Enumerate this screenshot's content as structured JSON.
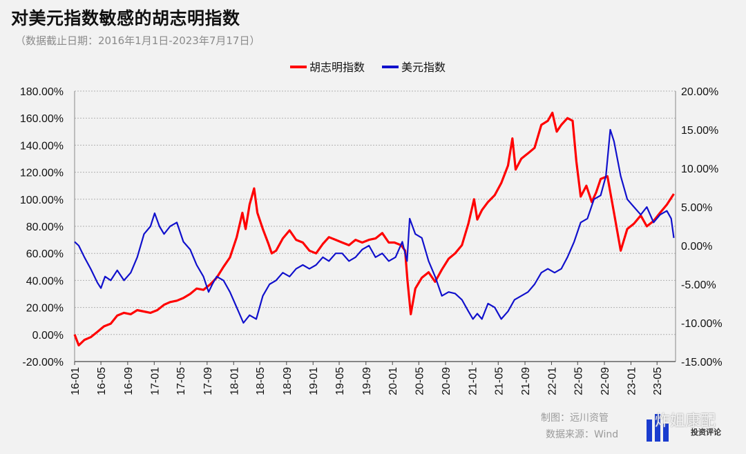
{
  "title": "对美元指数敏感的胡志明指数",
  "subtitle": "（数据截止日期：2016年1月1日-2023年7月17日）",
  "footer": {
    "maker": "制图：远川资管",
    "source": "数据来源：Wind"
  },
  "watermark": {
    "text": "炸姐康配",
    "sub": "投资评论"
  },
  "colors": {
    "vn_index": "#ff0000",
    "usd_index": "#1010cc",
    "grid": "#b0b0b0",
    "background": "#f2f2f2"
  },
  "chart_data": {
    "type": "line",
    "title": "对美元指数敏感的胡志明指数",
    "subtitle": "（数据截止日期：2016年1月1日-2023年7月17日）",
    "legend_position": "top-center",
    "grid": true,
    "x_tick_labels": [
      "16-01",
      "16-05",
      "16-09",
      "17-01",
      "17-05",
      "17-09",
      "18-01",
      "18-05",
      "18-09",
      "19-01",
      "19-05",
      "19-09",
      "20-01",
      "20-05",
      "20-09",
      "21-01",
      "21-05",
      "21-09",
      "22-01",
      "22-05",
      "22-09",
      "23-01",
      "23-05"
    ],
    "y_left": {
      "ylim": [
        -20,
        180
      ],
      "ticks": [
        -20,
        0,
        20,
        40,
        60,
        80,
        100,
        120,
        140,
        160,
        180
      ],
      "tick_labels": [
        "-20.00%",
        "0.00%",
        "20.00%",
        "40.00%",
        "60.00%",
        "80.00%",
        "100.00%",
        "120.00%",
        "140.00%",
        "160.00%",
        "180.00%"
      ]
    },
    "y_right": {
      "ylim": [
        -15,
        20
      ],
      "ticks": [
        -15,
        -10,
        -5,
        0,
        5,
        10,
        15,
        20
      ],
      "tick_labels": [
        "-15.00%",
        "-10.00%",
        "-5.00%",
        "0.00%",
        "5.00%",
        "10.00%",
        "15.00%",
        "20.00%"
      ]
    },
    "series": [
      {
        "name": "胡志明指数",
        "axis": "left",
        "color": "#ff0000",
        "points": [
          [
            "2016-01-01",
            0
          ],
          [
            "2016-01-20",
            -8
          ],
          [
            "2016-02-15",
            -4
          ],
          [
            "2016-03-15",
            -2
          ],
          [
            "2016-04-15",
            2
          ],
          [
            "2016-05-15",
            6
          ],
          [
            "2016-06-15",
            8
          ],
          [
            "2016-07-15",
            14
          ],
          [
            "2016-08-15",
            16
          ],
          [
            "2016-09-15",
            15
          ],
          [
            "2016-10-15",
            18
          ],
          [
            "2016-11-15",
            17
          ],
          [
            "2016-12-15",
            16
          ],
          [
            "2017-01-15",
            18
          ],
          [
            "2017-02-15",
            22
          ],
          [
            "2017-03-15",
            24
          ],
          [
            "2017-04-15",
            25
          ],
          [
            "2017-05-15",
            27
          ],
          [
            "2017-06-15",
            30
          ],
          [
            "2017-07-15",
            34
          ],
          [
            "2017-08-15",
            33
          ],
          [
            "2017-09-15",
            37
          ],
          [
            "2017-10-15",
            42
          ],
          [
            "2017-11-15",
            50
          ],
          [
            "2017-12-15",
            57
          ],
          [
            "2018-01-15",
            72
          ],
          [
            "2018-02-10",
            90
          ],
          [
            "2018-02-25",
            78
          ],
          [
            "2018-03-15",
            96
          ],
          [
            "2018-04-05",
            108
          ],
          [
            "2018-04-20",
            90
          ],
          [
            "2018-05-15",
            78
          ],
          [
            "2018-06-10",
            67
          ],
          [
            "2018-06-25",
            60
          ],
          [
            "2018-07-15",
            62
          ],
          [
            "2018-08-15",
            71
          ],
          [
            "2018-09-15",
            77
          ],
          [
            "2018-10-15",
            70
          ],
          [
            "2018-11-15",
            68
          ],
          [
            "2018-12-15",
            62
          ],
          [
            "2019-01-15",
            60
          ],
          [
            "2019-02-15",
            67
          ],
          [
            "2019-03-15",
            72
          ],
          [
            "2019-04-15",
            70
          ],
          [
            "2019-05-15",
            68
          ],
          [
            "2019-06-15",
            66
          ],
          [
            "2019-07-15",
            70
          ],
          [
            "2019-08-15",
            68
          ],
          [
            "2019-09-15",
            70
          ],
          [
            "2019-10-15",
            71
          ],
          [
            "2019-11-15",
            75
          ],
          [
            "2019-12-15",
            68
          ],
          [
            "2020-01-10",
            68
          ],
          [
            "2020-02-10",
            66
          ],
          [
            "2020-02-28",
            62
          ],
          [
            "2020-03-10",
            40
          ],
          [
            "2020-03-25",
            15
          ],
          [
            "2020-04-15",
            34
          ],
          [
            "2020-05-15",
            42
          ],
          [
            "2020-06-15",
            46
          ],
          [
            "2020-07-15",
            39
          ],
          [
            "2020-08-15",
            48
          ],
          [
            "2020-09-15",
            56
          ],
          [
            "2020-10-15",
            60
          ],
          [
            "2020-11-15",
            66
          ],
          [
            "2020-12-15",
            82
          ],
          [
            "2021-01-10",
            100
          ],
          [
            "2021-01-25",
            85
          ],
          [
            "2021-02-15",
            92
          ],
          [
            "2021-03-15",
            98
          ],
          [
            "2021-04-15",
            103
          ],
          [
            "2021-05-15",
            112
          ],
          [
            "2021-06-15",
            125
          ],
          [
            "2021-07-05",
            145
          ],
          [
            "2021-07-20",
            122
          ],
          [
            "2021-08-15",
            130
          ],
          [
            "2021-09-15",
            134
          ],
          [
            "2021-10-15",
            138
          ],
          [
            "2021-11-15",
            155
          ],
          [
            "2021-12-15",
            158
          ],
          [
            "2022-01-05",
            164
          ],
          [
            "2022-01-25",
            150
          ],
          [
            "2022-02-15",
            155
          ],
          [
            "2022-03-15",
            160
          ],
          [
            "2022-04-08",
            158
          ],
          [
            "2022-04-25",
            128
          ],
          [
            "2022-05-15",
            102
          ],
          [
            "2022-06-10",
            110
          ],
          [
            "2022-07-05",
            98
          ],
          [
            "2022-07-25",
            105
          ],
          [
            "2022-08-15",
            115
          ],
          [
            "2022-09-15",
            117
          ],
          [
            "2022-10-15",
            90
          ],
          [
            "2022-11-15",
            62
          ],
          [
            "2022-12-15",
            78
          ],
          [
            "2023-01-15",
            82
          ],
          [
            "2023-02-15",
            88
          ],
          [
            "2023-03-15",
            80
          ],
          [
            "2023-04-15",
            84
          ],
          [
            "2023-05-15",
            90
          ],
          [
            "2023-06-15",
            96
          ],
          [
            "2023-07-17",
            104
          ]
        ]
      },
      {
        "name": "美元指数",
        "axis": "right",
        "color": "#1010cc",
        "points": [
          [
            "2016-01-01",
            0.5
          ],
          [
            "2016-01-20",
            0.0
          ],
          [
            "2016-02-15",
            -1.5
          ],
          [
            "2016-03-15",
            -3.0
          ],
          [
            "2016-04-15",
            -4.8
          ],
          [
            "2016-05-01",
            -5.5
          ],
          [
            "2016-05-20",
            -4.0
          ],
          [
            "2016-06-15",
            -4.5
          ],
          [
            "2016-07-15",
            -3.2
          ],
          [
            "2016-08-15",
            -4.5
          ],
          [
            "2016-09-15",
            -3.5
          ],
          [
            "2016-10-15",
            -1.5
          ],
          [
            "2016-11-15",
            1.5
          ],
          [
            "2016-12-15",
            2.5
          ],
          [
            "2017-01-03",
            4.2
          ],
          [
            "2017-01-25",
            2.5
          ],
          [
            "2017-02-15",
            1.5
          ],
          [
            "2017-03-15",
            2.5
          ],
          [
            "2017-04-15",
            3.0
          ],
          [
            "2017-05-15",
            0.5
          ],
          [
            "2017-06-15",
            -0.5
          ],
          [
            "2017-07-15",
            -2.5
          ],
          [
            "2017-08-15",
            -4.0
          ],
          [
            "2017-09-08",
            -6.0
          ],
          [
            "2017-09-25",
            -5.0
          ],
          [
            "2017-10-15",
            -4.0
          ],
          [
            "2017-11-15",
            -4.5
          ],
          [
            "2017-12-15",
            -6.0
          ],
          [
            "2018-01-15",
            -8.0
          ],
          [
            "2018-02-15",
            -10.0
          ],
          [
            "2018-03-15",
            -9.0
          ],
          [
            "2018-04-15",
            -9.5
          ],
          [
            "2018-05-15",
            -6.5
          ],
          [
            "2018-06-15",
            -5.0
          ],
          [
            "2018-07-15",
            -4.5
          ],
          [
            "2018-08-15",
            -3.5
          ],
          [
            "2018-09-15",
            -4.0
          ],
          [
            "2018-10-15",
            -3.0
          ],
          [
            "2018-11-15",
            -2.5
          ],
          [
            "2018-12-15",
            -3.0
          ],
          [
            "2019-01-15",
            -2.5
          ],
          [
            "2019-02-15",
            -1.5
          ],
          [
            "2019-03-15",
            -2.0
          ],
          [
            "2019-04-15",
            -1.0
          ],
          [
            "2019-05-15",
            -1.0
          ],
          [
            "2019-06-15",
            -2.0
          ],
          [
            "2019-07-15",
            -1.5
          ],
          [
            "2019-08-15",
            -0.5
          ],
          [
            "2019-09-15",
            0.0
          ],
          [
            "2019-10-15",
            -1.5
          ],
          [
            "2019-11-15",
            -1.0
          ],
          [
            "2019-12-15",
            -2.0
          ],
          [
            "2020-01-15",
            -1.5
          ],
          [
            "2020-02-15",
            0.5
          ],
          [
            "2020-03-08",
            -2.0
          ],
          [
            "2020-03-20",
            3.5
          ],
          [
            "2020-04-15",
            1.5
          ],
          [
            "2020-05-15",
            1.0
          ],
          [
            "2020-06-15",
            -2.0
          ],
          [
            "2020-07-15",
            -4.0
          ],
          [
            "2020-08-15",
            -6.5
          ],
          [
            "2020-09-15",
            -6.0
          ],
          [
            "2020-10-15",
            -6.2
          ],
          [
            "2020-11-15",
            -7.0
          ],
          [
            "2020-12-15",
            -8.5
          ],
          [
            "2021-01-05",
            -9.5
          ],
          [
            "2021-01-25",
            -8.8
          ],
          [
            "2021-02-15",
            -9.5
          ],
          [
            "2021-03-15",
            -7.5
          ],
          [
            "2021-04-15",
            -8.0
          ],
          [
            "2021-05-15",
            -9.5
          ],
          [
            "2021-06-15",
            -8.5
          ],
          [
            "2021-07-15",
            -7.0
          ],
          [
            "2021-08-15",
            -6.5
          ],
          [
            "2021-09-15",
            -6.0
          ],
          [
            "2021-10-15",
            -5.0
          ],
          [
            "2021-11-15",
            -3.5
          ],
          [
            "2021-12-15",
            -3.0
          ],
          [
            "2022-01-15",
            -3.5
          ],
          [
            "2022-02-15",
            -3.0
          ],
          [
            "2022-03-15",
            -1.5
          ],
          [
            "2022-04-15",
            0.5
          ],
          [
            "2022-05-15",
            3.0
          ],
          [
            "2022-06-15",
            3.5
          ],
          [
            "2022-07-15",
            6.0
          ],
          [
            "2022-08-15",
            6.5
          ],
          [
            "2022-09-08",
            9.0
          ],
          [
            "2022-09-28",
            15.0
          ],
          [
            "2022-10-15",
            13.5
          ],
          [
            "2022-11-15",
            9.0
          ],
          [
            "2022-12-15",
            6.0
          ],
          [
            "2023-01-15",
            5.0
          ],
          [
            "2023-02-15",
            4.0
          ],
          [
            "2023-03-15",
            5.0
          ],
          [
            "2023-04-15",
            3.0
          ],
          [
            "2023-05-15",
            4.0
          ],
          [
            "2023-06-15",
            4.5
          ],
          [
            "2023-07-05",
            3.5
          ],
          [
            "2023-07-17",
            1.0
          ]
        ]
      }
    ]
  }
}
